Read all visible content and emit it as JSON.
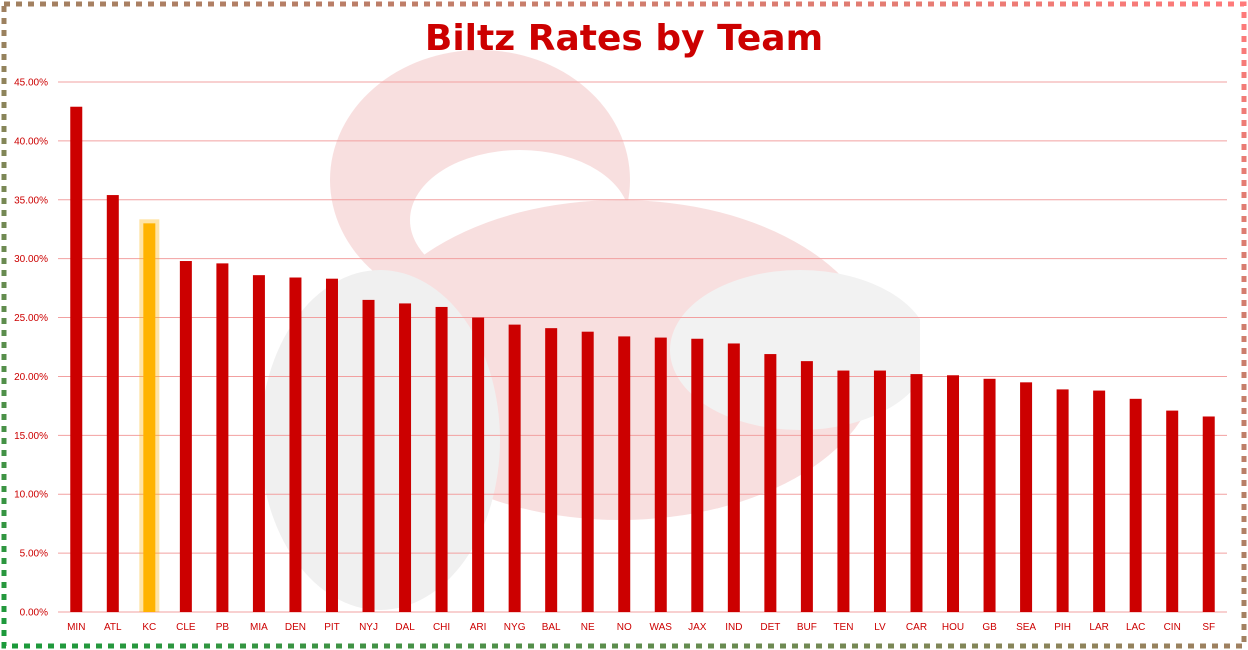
{
  "chart_data": {
    "type": "bar",
    "title": "Biltz Rates by Team",
    "xlabel": "",
    "ylabel": "",
    "ylim": [
      0,
      45
    ],
    "yticks": [
      "0.00%",
      "5.00%",
      "10.00%",
      "15.00%",
      "20.00%",
      "25.00%",
      "30.00%",
      "35.00%",
      "40.00%",
      "45.00%"
    ],
    "grid": true,
    "categories": [
      "MIN",
      "ATL",
      "KC",
      "CLE",
      "PB",
      "MIA",
      "DEN",
      "PIT",
      "NYJ",
      "DAL",
      "CHI",
      "ARI",
      "NYG",
      "BAL",
      "NE",
      "NO",
      "WAS",
      "JAX",
      "IND",
      "DET",
      "BUF",
      "TEN",
      "LV",
      "CAR",
      "HOU",
      "GB",
      "SEA",
      "PIH",
      "LAR",
      "LAC",
      "CIN",
      "SF"
    ],
    "values": [
      42.9,
      35.4,
      33.0,
      29.8,
      29.6,
      28.6,
      28.4,
      28.3,
      26.5,
      26.2,
      25.9,
      25.0,
      24.4,
      24.1,
      23.8,
      23.4,
      23.3,
      23.2,
      22.8,
      21.9,
      21.3,
      20.5,
      20.5,
      20.2,
      20.1,
      19.8,
      19.5,
      18.9,
      18.8,
      18.1,
      17.1,
      16.6
    ],
    "highlight_category": "KC",
    "colors": {
      "bar": "#cc0000",
      "highlight": "#ffb300",
      "grid": "#f2a0a0",
      "text": "#cc0000"
    }
  }
}
